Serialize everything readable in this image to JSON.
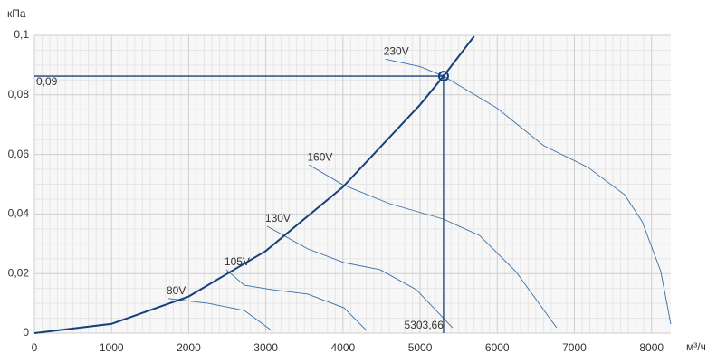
{
  "chart_data": {
    "type": "line",
    "y_label": "кПа",
    "x_label": "м³/ч",
    "xlim": [
      0,
      8250
    ],
    "ylim": [
      0,
      0.1
    ],
    "xticks": [
      0,
      1000,
      2000,
      3000,
      4000,
      5000,
      6000,
      7000,
      8000
    ],
    "yticks": [
      0,
      {
        "value": 0.02,
        "label": "0,02"
      },
      {
        "value": 0.04,
        "label": "0,04"
      },
      {
        "value": 0.06,
        "label": "0,06"
      },
      {
        "value": 0.08,
        "label": "0,08"
      },
      {
        "value": 0.1,
        "label": "0,1"
      }
    ],
    "grid": true,
    "series": [
      {
        "name": "230V",
        "color": "#3a6ea5",
        "x": [
          4550,
          5000,
          5303.66,
          6000,
          6600,
          7180,
          7650,
          7880,
          8120,
          8250
        ],
        "values": [
          0.092,
          0.0895,
          0.0863,
          0.0755,
          0.063,
          0.0556,
          0.0465,
          0.0374,
          0.0207,
          0.003
        ]
      },
      {
        "name": "160V",
        "color": "#3a6ea5",
        "x": [
          3560,
          4000,
          4600,
          5300,
          5770,
          6240,
          6770
        ],
        "values": [
          0.0565,
          0.0498,
          0.0435,
          0.0383,
          0.0328,
          0.0207,
          0.0018
        ]
      },
      {
        "name": "130V",
        "color": "#3a6ea5",
        "x": [
          3015,
          3543,
          4012,
          4481,
          4950,
          5420
        ],
        "values": [
          0.0359,
          0.0283,
          0.0237,
          0.0213,
          0.0146,
          0.0018
        ]
      },
      {
        "name": "105V",
        "color": "#3a6ea5",
        "x": [
          2487,
          2721,
          3073,
          3543,
          4012,
          4305
        ],
        "values": [
          0.0213,
          0.0161,
          0.0146,
          0.0131,
          0.0085,
          0.0009
        ]
      },
      {
        "name": "80V",
        "color": "#3a6ea5",
        "x": [
          1736,
          2252,
          2721,
          3073
        ],
        "values": [
          0.0116,
          0.01,
          0.0076,
          0.0009
        ]
      }
    ],
    "system_curve": {
      "color": "#16407c",
      "x": [
        0,
        1000,
        2000,
        3000,
        4000,
        5000,
        5303.66,
        5700
      ],
      "values": [
        0,
        0.0031,
        0.0123,
        0.0276,
        0.0491,
        0.0767,
        0.0863,
        0.0997
      ]
    },
    "operating_point": {
      "x": 5303.66,
      "x_label": "5303,66",
      "y": 0.0863,
      "y_label": "0,09",
      "color": "#16407c"
    }
  }
}
